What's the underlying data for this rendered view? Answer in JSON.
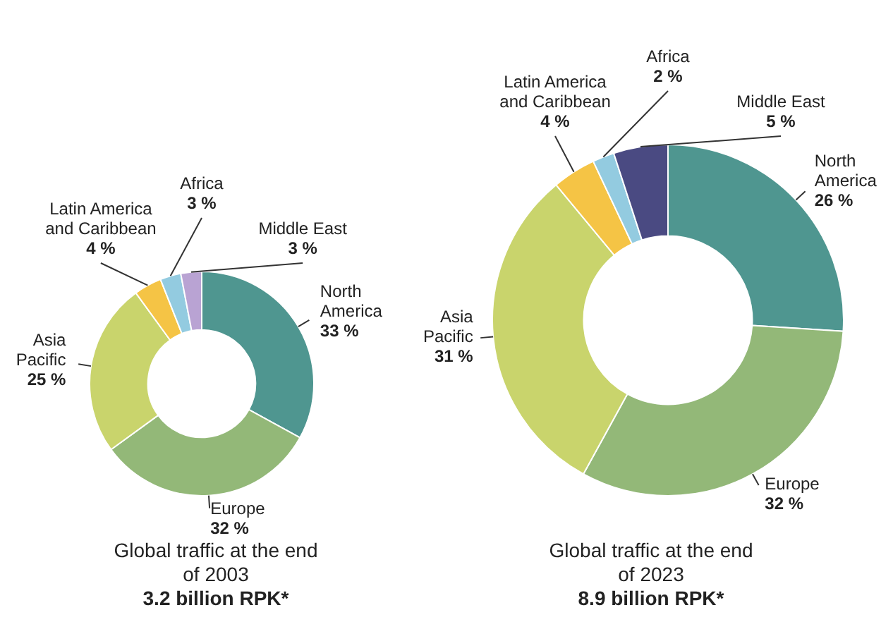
{
  "chart_data": [
    {
      "type": "donut",
      "title": "Global traffic at the end of 2003",
      "subtitle": "3.2 billion RPK*",
      "categories": [
        "North America",
        "Europe",
        "Asia Pacific",
        "Latin America and Caribbean",
        "Africa",
        "Middle East"
      ],
      "values": [
        33,
        32,
        25,
        4,
        3,
        3
      ],
      "value_labels": [
        "33 %",
        "32 %",
        "25 %",
        "4 %",
        "3 %",
        "3 %"
      ],
      "colors": [
        "#4f9690",
        "#93b878",
        "#c9d46c",
        "#f5c445",
        "#93cbe0",
        "#b9a3d3"
      ],
      "legend": false
    },
    {
      "type": "donut",
      "title": "Global traffic at the end of 2023",
      "subtitle": "8.9 billion RPK*",
      "categories": [
        "North America",
        "Europe",
        "Asia Pacific",
        "Latin America and Caribbean",
        "Africa",
        "Middle East"
      ],
      "values": [
        26,
        32,
        31,
        4,
        2,
        5
      ],
      "value_labels": [
        "26 %",
        "32 %",
        "31 %",
        "4 %",
        "2 %",
        "5 %"
      ],
      "colors": [
        "#4f9690",
        "#93b878",
        "#c9d46c",
        "#f5c445",
        "#93cbe0",
        "#4a4a82"
      ],
      "legend": false
    }
  ]
}
